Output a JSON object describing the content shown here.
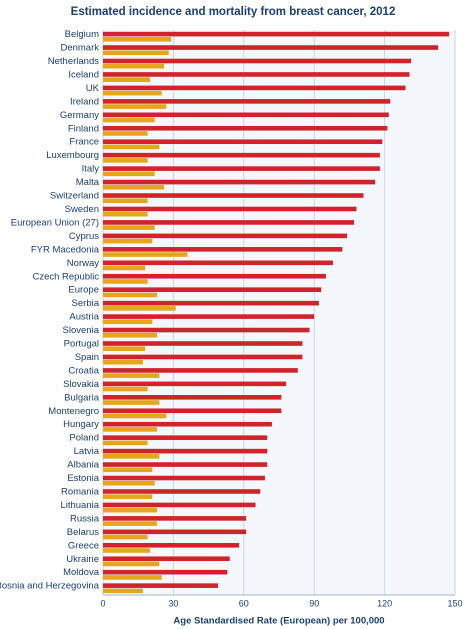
{
  "chart_data": {
    "type": "hbar",
    "title": "Estimated incidence and mortality from breast cancer, 2012",
    "x_label": "Age Standardised Rate (European) per 100,000",
    "categories": [
      "Belgium",
      "Denmark",
      "Netherlands",
      "Iceland",
      "UK",
      "Ireland",
      "Germany",
      "Finland",
      "France",
      "Luxembourg",
      "Italy",
      "Malta",
      "Switzerland",
      "Sweden",
      "European Union (27)",
      "Cyprus",
      "FYR Macedonia",
      "Norway",
      "Czech Republic",
      "Europe",
      "Serbia",
      "Austria",
      "Slovenia",
      "Portugal",
      "Spain",
      "Croatia",
      "Slovakia",
      "Bulgaria",
      "Montenegro",
      "Hungary",
      "Poland",
      "Latvia",
      "Albania",
      "Estonia",
      "Romania",
      "Lithuania",
      "Russia",
      "Belarus",
      "Greece",
      "Ukraine",
      "Moldova",
      "Bosnia and Herzegovina"
    ],
    "series": [
      {
        "color": "#d0232b",
        "values": [
          147.5,
          142.8,
          131.3,
          130.6,
          128.9,
          122.4,
          121.8,
          121.2,
          119,
          118,
          118,
          116,
          111,
          108,
          107,
          104,
          102,
          98,
          95,
          93,
          92,
          90,
          88,
          85,
          85,
          83,
          78,
          76,
          76,
          72,
          70,
          70,
          70,
          69,
          67,
          65,
          61,
          61,
          58,
          54,
          53,
          49
        ]
      },
      {
        "color": "#e6a51b",
        "values": [
          29,
          28,
          26,
          20,
          25,
          27,
          22,
          19,
          24,
          19,
          22,
          26,
          19,
          19,
          22,
          21,
          36,
          18,
          19,
          23,
          31,
          21,
          23,
          18,
          17,
          24,
          19,
          24,
          27,
          23,
          19,
          24,
          21,
          22,
          21,
          23,
          23,
          19,
          20,
          24,
          25,
          17
        ]
      }
    ],
    "xlim": [
      0,
      150
    ],
    "xticks": [
      0,
      30,
      60,
      90,
      120,
      150
    ],
    "grid": true
  }
}
